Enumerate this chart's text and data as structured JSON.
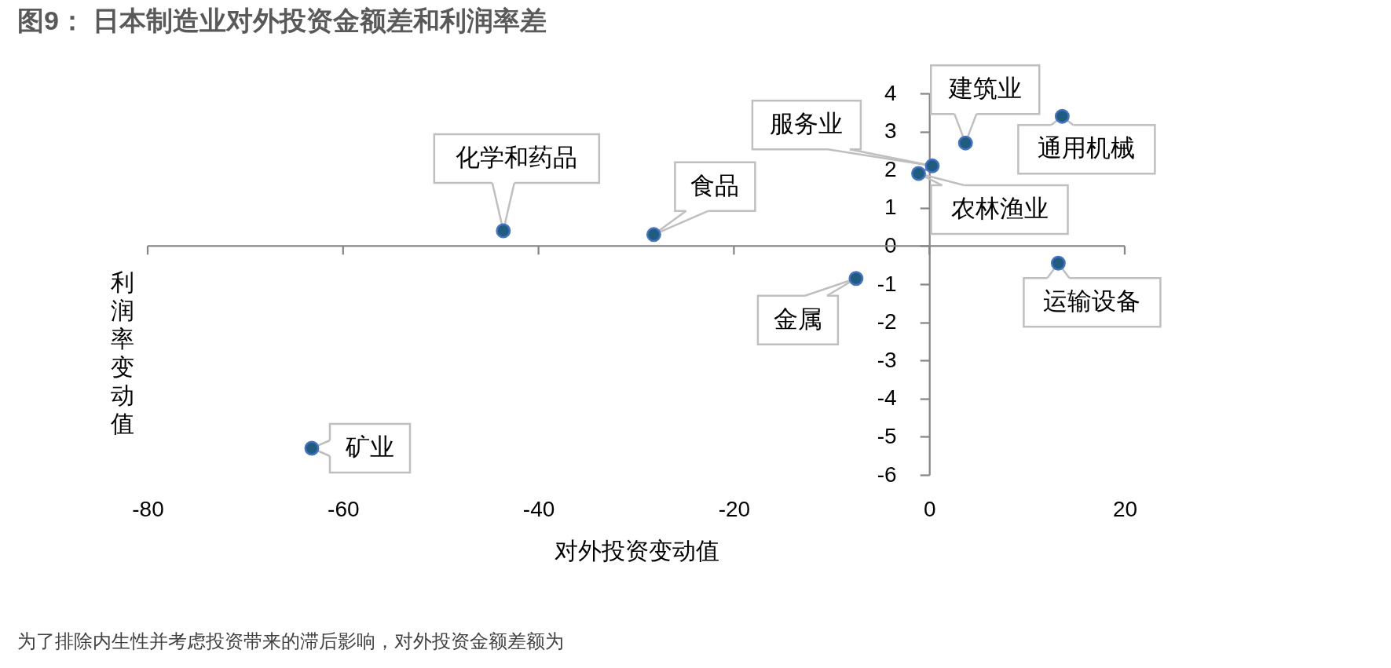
{
  "chart_data": {
    "type": "scatter",
    "title": "图9： 日本制造业对外投资金额差和利润率差",
    "xlabel": "对外投资变动值",
    "ylabel": "利润率变动值",
    "x": [
      -43.6,
      -28.2,
      -1.1,
      0.3,
      3.7,
      13.6,
      13.2,
      -7.5,
      -63.2
    ],
    "series": [
      {
        "color": "#1f5c80",
        "values": [
          0.4,
          0.3,
          1.9,
          2.1,
          2.7,
          3.4,
          -0.45,
          -0.85,
          -5.3
        ]
      }
    ],
    "xlim": [
      -80,
      20
    ],
    "xticks": [
      -80,
      -60,
      -40,
      -20,
      0,
      20
    ],
    "ylim": [
      -6,
      4
    ],
    "yticks": [
      -6,
      -5,
      -4,
      -3,
      -2,
      -1,
      0,
      1,
      2,
      3,
      4
    ],
    "marker": "circle",
    "annotations": [
      {
        "text": "化学和药品",
        "x": -43.6,
        "y": 0.4
      },
      {
        "text": "食品",
        "x": -28.2,
        "y": 0.3
      },
      {
        "text": "农林渔业",
        "x": -1.1,
        "y": 1.9
      },
      {
        "text": "服务业",
        "x": 0.3,
        "y": 2.1
      },
      {
        "text": "建筑业",
        "x": 3.7,
        "y": 2.7
      },
      {
        "text": "通用机械",
        "x": 13.6,
        "y": 3.4
      },
      {
        "text": "运输设备",
        "x": 13.2,
        "y": -0.45
      },
      {
        "text": "金属",
        "x": -7.5,
        "y": -0.85
      },
      {
        "text": "矿业",
        "x": -63.2,
        "y": -5.3
      },
      "为了排除内生性并考虑投资带来的滞后影响，对外投资金额差额为"
    ]
  }
}
